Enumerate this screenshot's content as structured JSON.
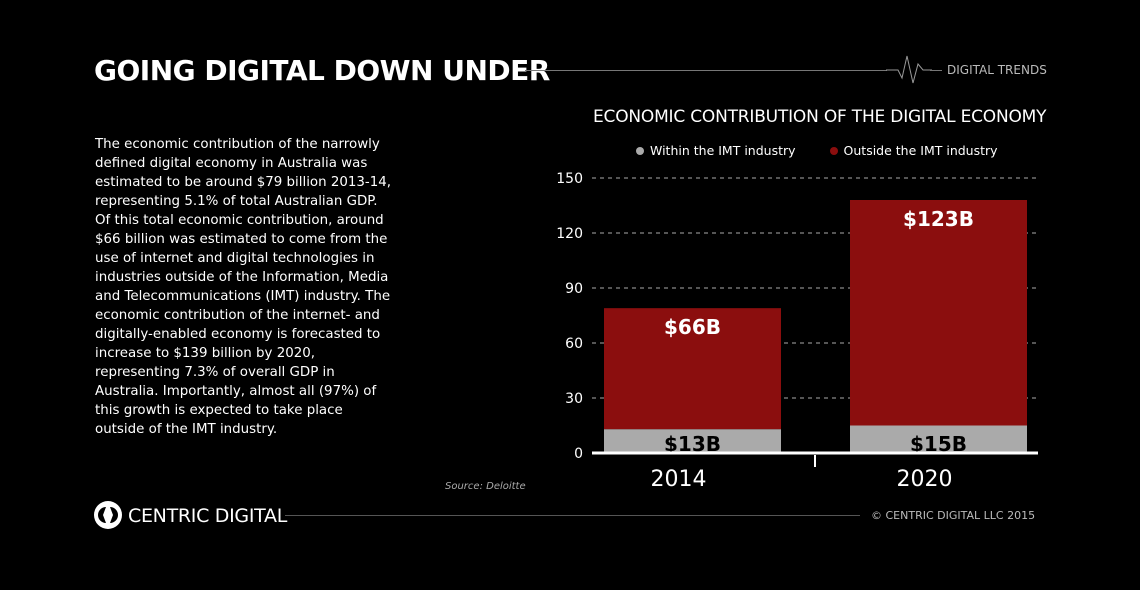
{
  "header": {
    "title": "GOING DIGITAL DOWN UNDER",
    "tag": "DIGITAL TRENDS"
  },
  "body_text": "The economic contribution of the narrowly defined digital economy in Australia was estimated to be around $79 billion 2013-14, representing 5.1% of total Australian GDP. Of this total economic contribution, around $66 billion was estimated to come from the use of internet and digital technologies in industries outside of the Information, Media and Telecommunications (IMT) industry. The economic contribution of the internet- and digitally-enabled economy is forecasted to increase to $139 billion by 2020, representing 7.3% of overall GDP in Australia. Importantly, almost all (97%) of this growth is expected to take place outside of the IMT industry.",
  "source": "Source:  Deloitte",
  "footer": {
    "brand": "CENTRIC DIGITAL",
    "copyright": "© CENTRIC DIGITAL LLC 2015"
  },
  "chart_data": {
    "type": "bar",
    "stacked": true,
    "title": "ECONOMIC CONTRIBUTION OF THE DIGITAL ECONOMY",
    "categories": [
      "2014",
      "2020"
    ],
    "series": [
      {
        "name": "Within the IMT industry",
        "values": [
          13,
          15
        ],
        "labels": [
          "$13B",
          "$15B"
        ],
        "color": "#aaaaaa"
      },
      {
        "name": "Outside the IMT industry",
        "values": [
          66,
          123
        ],
        "labels": [
          "$66B",
          "$123B"
        ],
        "color": "#8b0e0e"
      }
    ],
    "ylim": [
      0,
      150
    ],
    "yticks": [
      "0",
      "30",
      "60",
      "90",
      "120",
      "150"
    ],
    "grid": true,
    "legend": "top"
  }
}
